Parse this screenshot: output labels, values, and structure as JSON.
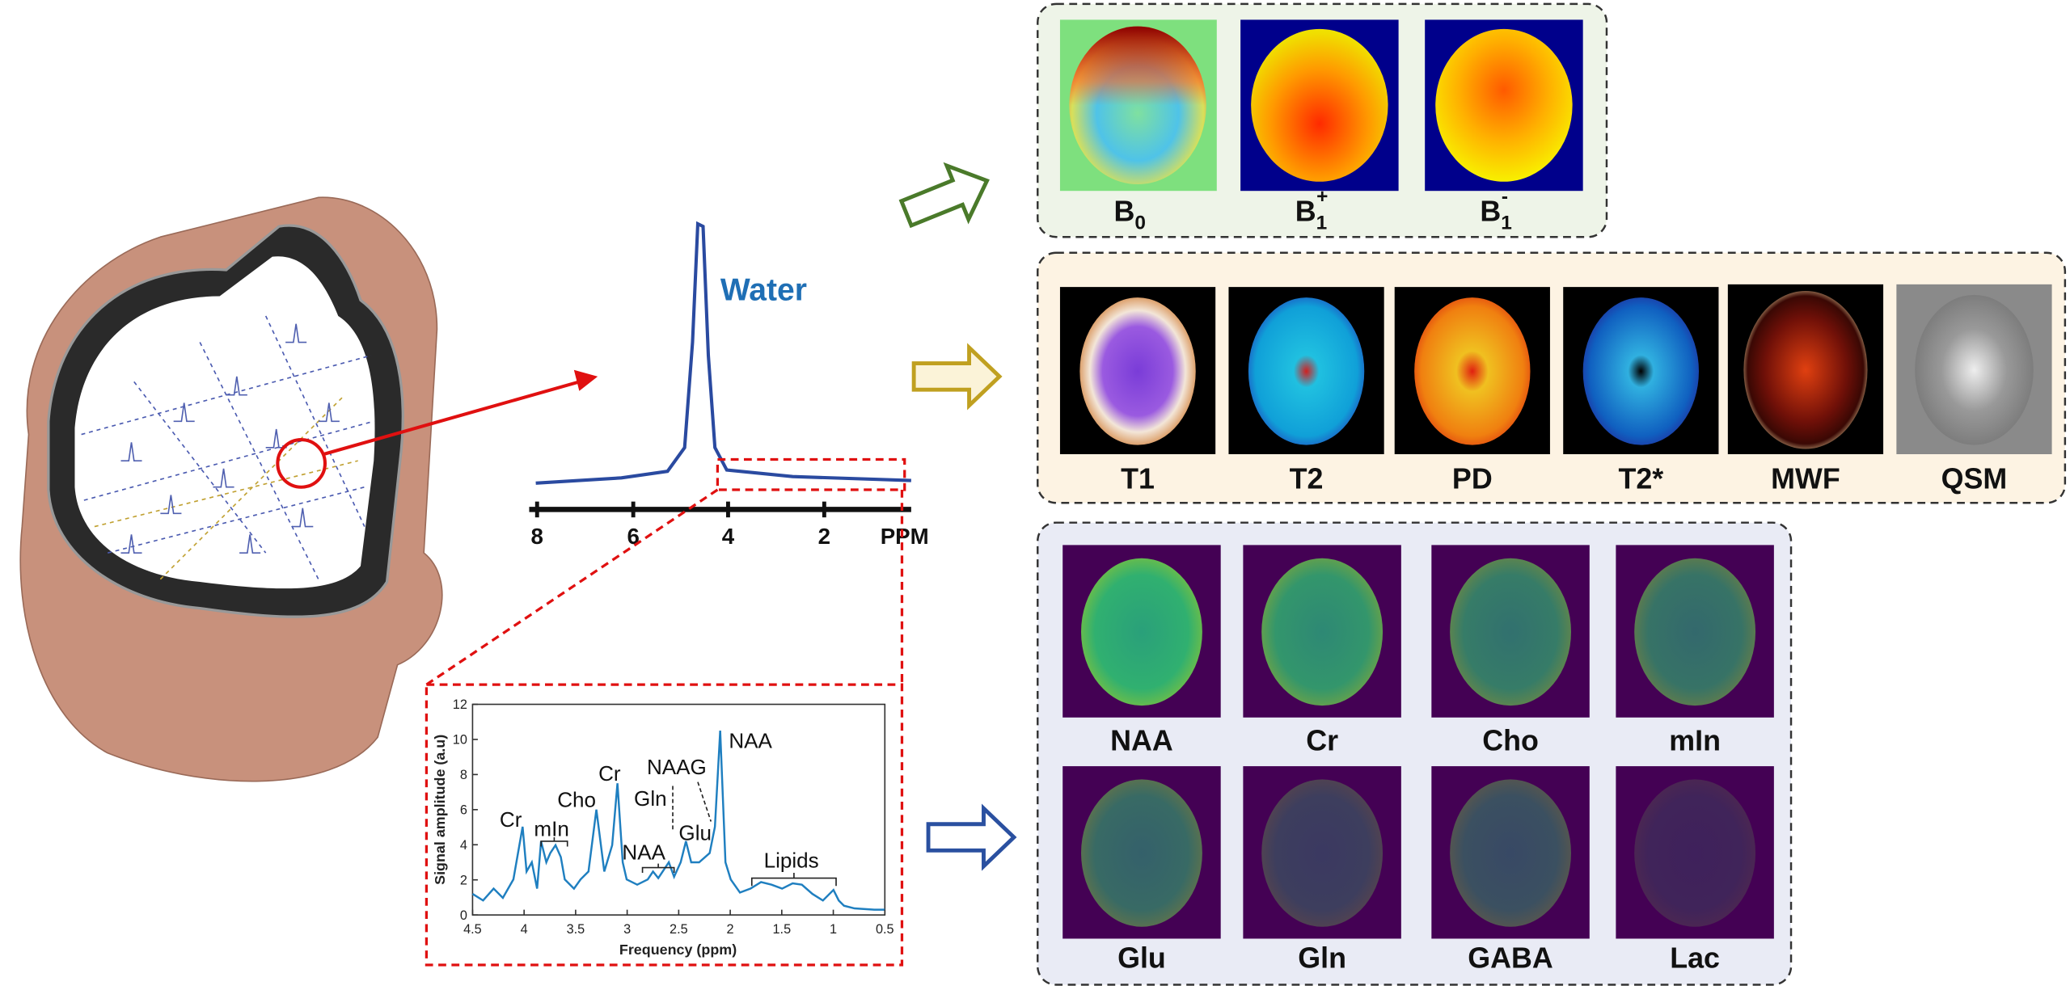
{
  "water_spectrum": {
    "label": "Water",
    "xticks": [
      8,
      6,
      4,
      2,
      "PPM"
    ]
  },
  "inset": {
    "ylabel": "Signal amplitude (a.u)",
    "xlabel": "Frequency (ppm)",
    "yticks": [
      0,
      2,
      4,
      6,
      8,
      10,
      12
    ],
    "xticks": [
      4.5,
      4,
      3.5,
      3,
      2.5,
      2,
      1.5,
      1,
      0.5
    ],
    "peaks": [
      "Cr",
      "mIn",
      "Cho",
      "Cr",
      "Gln",
      "NAAG",
      "NAA",
      "Glu",
      "NAA",
      "Lipids"
    ]
  },
  "field_maps": [
    {
      "base": "B",
      "sub": 0
    },
    {
      "base": "B",
      "sub": 1,
      "sup": "+"
    },
    {
      "base": "B",
      "sub": 1,
      "sup": "-"
    }
  ],
  "relaxometry_maps": [
    "T1",
    "T2",
    "PD",
    "T2*",
    "MWF",
    "QSM"
  ],
  "metabolite_maps": [
    "NAA",
    "Cr",
    "Cho",
    "mIn",
    "Glu",
    "Gln",
    "GABA",
    "Lac"
  ]
}
